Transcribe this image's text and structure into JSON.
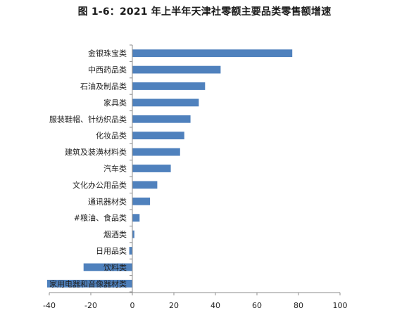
{
  "chart_data": {
    "type": "bar",
    "orientation": "horizontal",
    "title": "图 1-6：2021 年上半年天津社零额主要品类零售额增速",
    "xlabel": "",
    "ylabel": "",
    "xlim": [
      -40,
      100
    ],
    "xticks": [
      -40,
      -20,
      0,
      20,
      40,
      60,
      80,
      100
    ],
    "grid": false,
    "legend": "none",
    "bar_color": "#4f81bd",
    "categories": [
      "金银珠宝类",
      "中西药品类",
      "石油及制品类",
      "家具类",
      "服装鞋帽、针纺织品类",
      "化妆品类",
      "建筑及装潢材料类",
      "汽车类",
      "文化办公用品类",
      "通讯器材类",
      "#粮油、食品类",
      "烟酒类",
      "日用品类",
      "饮料类",
      "家用电器和音像器材类"
    ],
    "values": [
      77,
      42.5,
      35,
      32,
      28,
      25,
      23,
      18.5,
      12,
      8.5,
      3.5,
      1,
      -1.5,
      -23.5,
      -41
    ]
  }
}
